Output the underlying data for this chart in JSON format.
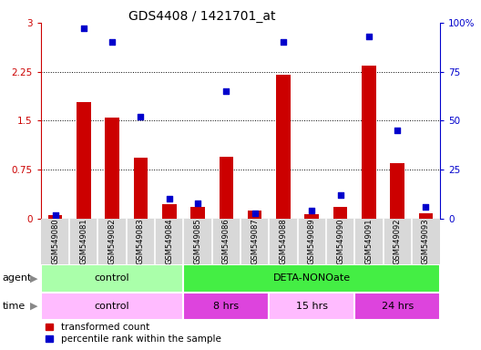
{
  "title": "GDS4408 / 1421701_at",
  "samples": [
    "GSM549080",
    "GSM549081",
    "GSM549082",
    "GSM549083",
    "GSM549084",
    "GSM549085",
    "GSM549086",
    "GSM549087",
    "GSM549088",
    "GSM549089",
    "GSM549090",
    "GSM549091",
    "GSM549092",
    "GSM549093"
  ],
  "red_values": [
    0.05,
    1.78,
    1.55,
    0.93,
    0.22,
    0.18,
    0.95,
    0.12,
    2.2,
    0.07,
    0.18,
    2.35,
    0.85,
    0.08
  ],
  "blue_values": [
    2,
    97,
    90,
    52,
    10,
    8,
    65,
    3,
    90,
    4,
    12,
    93,
    45,
    6
  ],
  "ylim_left": [
    0,
    3
  ],
  "ylim_right": [
    0,
    100
  ],
  "yticks_left": [
    0,
    0.75,
    1.5,
    2.25,
    3
  ],
  "yticks_right": [
    0,
    25,
    50,
    75,
    100
  ],
  "ytick_labels_left": [
    "0",
    "0.75",
    "1.5",
    "2.25",
    "3"
  ],
  "ytick_labels_right": [
    "0",
    "25",
    "50",
    "75",
    "100%"
  ],
  "red_color": "#CC0000",
  "blue_color": "#0000CC",
  "agent_groups": [
    {
      "label": "control",
      "start": 0,
      "end": 4,
      "color": "#aaffaa"
    },
    {
      "label": "DETA-NONOate",
      "start": 5,
      "end": 13,
      "color": "#44ee44"
    }
  ],
  "time_groups": [
    {
      "label": "control",
      "start": 0,
      "end": 4,
      "color": "#ffbbff"
    },
    {
      "label": "8 hrs",
      "start": 5,
      "end": 7,
      "color": "#dd44dd"
    },
    {
      "label": "15 hrs",
      "start": 8,
      "end": 10,
      "color": "#ffbbff"
    },
    {
      "label": "24 hrs",
      "start": 11,
      "end": 13,
      "color": "#dd44dd"
    }
  ],
  "legend_red": "transformed count",
  "legend_blue": "percentile rank within the sample"
}
